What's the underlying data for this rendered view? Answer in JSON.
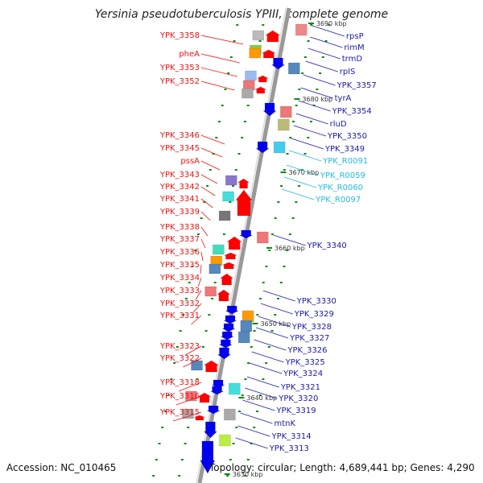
{
  "title": "Yersinia pseudotuberculosis YPIII, complete genome",
  "footer": {
    "accession": "Accession: NC_010465",
    "topology": "Topology: circular; Length: 4,689,441 bp; Genes: 4,290"
  },
  "colors": {
    "left_label": "#ee1111",
    "right_label": "#1a1aaa",
    "rna_label": "#22bbdd",
    "forward_arrow": "#ff0000",
    "reverse_arrow": "#0000ee",
    "backbone": "#999999",
    "tick": "#118811"
  },
  "ticks": [
    "3690 kbp",
    "3680 kbp",
    "3670 kbp",
    "3660 kbp",
    "3650 kbp",
    "3640 kbp",
    "3630 kbp"
  ],
  "left_labels": [
    "YPK_3358",
    "pheA",
    "YPK_3353",
    "YPK_3352",
    "YPK_3346",
    "YPK_3345",
    "pssA",
    "YPK_3343",
    "YPK_3342",
    "YPK_3341",
    "YPK_3339",
    "YPK_3338",
    "YPK_3337",
    "YPK_3336",
    "YPK_3335",
    "YPK_3334",
    "YPK_3333",
    "YPK_3332",
    "YPK_3331",
    "YPK_3323",
    "YPK_3322",
    "YPK_3318",
    "YPK_3316",
    "YPK_3315"
  ],
  "right_labels": [
    "rpsP",
    "rimM",
    "trmD",
    "rplS",
    "YPK_3357",
    "tyrA",
    "YPK_3354",
    "rluD",
    "YPK_3350",
    "YPK_3349",
    "YPK_R0091",
    "YPK_R0059",
    "YPK_R0060",
    "YPK_R0097",
    "YPK_3340",
    "YPK_3330",
    "YPK_3329",
    "YPK_3328",
    "YPK_3327",
    "YPK_3326",
    "YPK_3325",
    "YPK_3324",
    "YPK_3321",
    "YPK_3320",
    "YPK_3319",
    "mtnK",
    "YPK_3314",
    "YPK_3313"
  ]
}
